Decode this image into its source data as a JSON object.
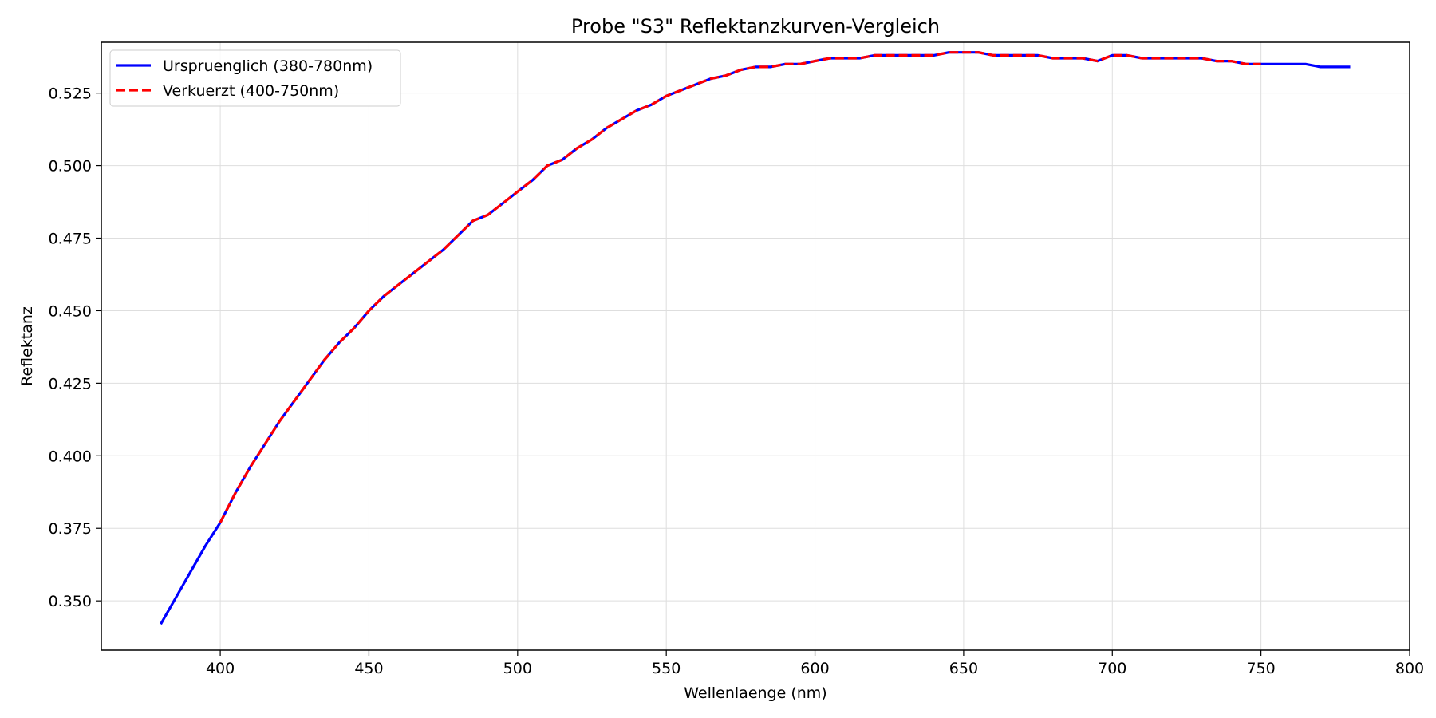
{
  "chart_data": {
    "type": "line",
    "title": "Probe \"S3\" Reflektanzkurven-Vergleich",
    "xlabel": "Wellenlaenge (nm)",
    "ylabel": "Reflektanz",
    "xlim": [
      360,
      800
    ],
    "ylim": [
      0.333,
      0.5425
    ],
    "xticks": [
      400,
      450,
      500,
      550,
      600,
      650,
      700,
      750,
      800
    ],
    "yticks": [
      0.35,
      0.375,
      0.4,
      0.425,
      0.45,
      0.475,
      0.5,
      0.525
    ],
    "xtick_labels": [
      "400",
      "450",
      "500",
      "550",
      "600",
      "650",
      "700",
      "750",
      "800"
    ],
    "ytick_labels": [
      "0.350",
      "0.375",
      "0.400",
      "0.425",
      "0.450",
      "0.475",
      "0.500",
      "0.525"
    ],
    "grid": true,
    "legend_position": "top-left",
    "series": [
      {
        "name": "Urspruenglich (380-780nm)",
        "color": "#0000ff",
        "style": "solid",
        "x": [
          380,
          385,
          390,
          395,
          400,
          405,
          410,
          415,
          420,
          425,
          430,
          435,
          440,
          445,
          450,
          455,
          460,
          465,
          470,
          475,
          480,
          485,
          490,
          495,
          500,
          505,
          510,
          515,
          520,
          525,
          530,
          535,
          540,
          545,
          550,
          555,
          560,
          565,
          570,
          575,
          580,
          585,
          590,
          595,
          600,
          605,
          610,
          615,
          620,
          625,
          630,
          635,
          640,
          645,
          650,
          655,
          660,
          665,
          670,
          675,
          680,
          685,
          690,
          695,
          700,
          705,
          710,
          715,
          720,
          725,
          730,
          735,
          740,
          745,
          750,
          755,
          760,
          765,
          770,
          775,
          780
        ],
        "y": [
          0.342,
          0.351,
          0.36,
          0.369,
          0.377,
          0.387,
          0.396,
          0.404,
          0.412,
          0.419,
          0.426,
          0.433,
          0.439,
          0.444,
          0.45,
          0.455,
          0.459,
          0.463,
          0.467,
          0.471,
          0.476,
          0.481,
          0.483,
          0.487,
          0.491,
          0.495,
          0.5,
          0.502,
          0.506,
          0.509,
          0.513,
          0.516,
          0.519,
          0.521,
          0.524,
          0.526,
          0.528,
          0.53,
          0.531,
          0.533,
          0.534,
          0.534,
          0.535,
          0.535,
          0.536,
          0.537,
          0.537,
          0.537,
          0.538,
          0.538,
          0.538,
          0.538,
          0.538,
          0.539,
          0.539,
          0.539,
          0.538,
          0.538,
          0.538,
          0.538,
          0.537,
          0.537,
          0.537,
          0.536,
          0.538,
          0.538,
          0.537,
          0.537,
          0.537,
          0.537,
          0.537,
          0.536,
          0.536,
          0.535,
          0.535,
          0.535,
          0.535,
          0.535,
          0.534,
          0.534,
          0.534
        ]
      },
      {
        "name": "Verkuerzt (400-750nm)",
        "color": "#ff0000",
        "style": "dashed",
        "x": [
          400,
          405,
          410,
          415,
          420,
          425,
          430,
          435,
          440,
          445,
          450,
          455,
          460,
          465,
          470,
          475,
          480,
          485,
          490,
          495,
          500,
          505,
          510,
          515,
          520,
          525,
          530,
          535,
          540,
          545,
          550,
          555,
          560,
          565,
          570,
          575,
          580,
          585,
          590,
          595,
          600,
          605,
          610,
          615,
          620,
          625,
          630,
          635,
          640,
          645,
          650,
          655,
          660,
          665,
          670,
          675,
          680,
          685,
          690,
          695,
          700,
          705,
          710,
          715,
          720,
          725,
          730,
          735,
          740,
          745,
          750
        ],
        "y": [
          0.377,
          0.387,
          0.396,
          0.404,
          0.412,
          0.419,
          0.426,
          0.433,
          0.439,
          0.444,
          0.45,
          0.455,
          0.459,
          0.463,
          0.467,
          0.471,
          0.476,
          0.481,
          0.483,
          0.487,
          0.491,
          0.495,
          0.5,
          0.502,
          0.506,
          0.509,
          0.513,
          0.516,
          0.519,
          0.521,
          0.524,
          0.526,
          0.528,
          0.53,
          0.531,
          0.533,
          0.534,
          0.534,
          0.535,
          0.535,
          0.536,
          0.537,
          0.537,
          0.537,
          0.538,
          0.538,
          0.538,
          0.538,
          0.538,
          0.539,
          0.539,
          0.539,
          0.538,
          0.538,
          0.538,
          0.538,
          0.537,
          0.537,
          0.537,
          0.536,
          0.538,
          0.538,
          0.537,
          0.537,
          0.537,
          0.537,
          0.537,
          0.536,
          0.536,
          0.535,
          0.535
        ]
      }
    ]
  }
}
